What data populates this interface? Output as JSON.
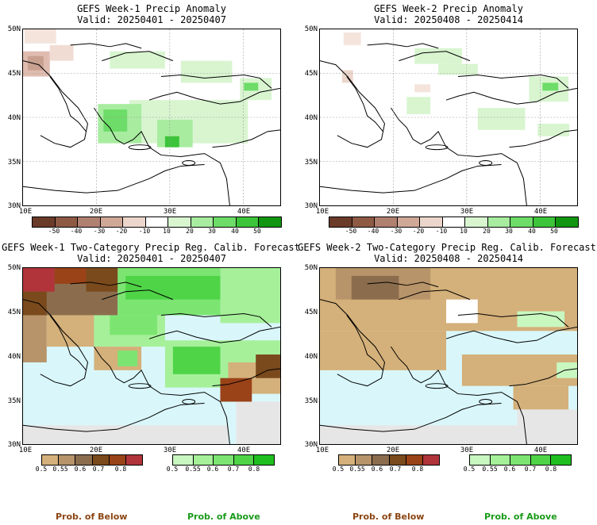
{
  "panels": [
    {
      "title": "GEFS Week-1 Precip Anomaly",
      "subtitle": "Valid: 20250401 - 20250407"
    },
    {
      "title": "GEFS Week-2 Precip Anomaly",
      "subtitle": "Valid: 20250408 - 20250414"
    },
    {
      "title": "GEFS Week-1 Two-Category Precip Reg. Calib. Forecast",
      "subtitle": "Valid: 20250401 - 20250407"
    },
    {
      "title": "GEFS Week-2 Two-Category Precip Reg. Calib. Forecast",
      "subtitle": "Valid: 20250408 - 20250414"
    }
  ],
  "lat_labels": [
    "50N",
    "45N",
    "40N",
    "35N",
    "30N"
  ],
  "lon_labels": [
    "10E",
    "20E",
    "30E",
    "40E"
  ],
  "anomaly_colorbar": {
    "labels": [
      "-50",
      "-40",
      "-30",
      "-20",
      "-10",
      "10",
      "20",
      "30",
      "40",
      "50"
    ],
    "colors": [
      "#6b3b2a",
      "#8e5a44",
      "#b08070",
      "#d0a898",
      "#ecd6cc",
      "#ffffff",
      "#d8f5d0",
      "#a8eca0",
      "#6ddc68",
      "#3cc43a",
      "#119611"
    ]
  },
  "prob_below_colorbar": {
    "labels": [
      "0.5",
      "0.55",
      "0.6",
      "0.7",
      "0.8"
    ],
    "colors": [
      "#d4b07a",
      "#b8946a",
      "#8b6d4e",
      "#7a4a1c",
      "#9a4218",
      "#b0343a"
    ]
  },
  "prob_above_colorbar": {
    "labels": [
      "0.5",
      "0.55",
      "0.6",
      "0.7",
      "0.8"
    ],
    "colors": [
      "#c8f7c0",
      "#a6f09a",
      "#7ce572",
      "#4fd447",
      "#1fbf1f"
    ]
  },
  "legend_text": {
    "below": "Prob. of Below",
    "above": "Prob. of Above"
  },
  "colors": {
    "below_text": "#8b4513",
    "above_text": "#1a9a1a",
    "sea": "#d9f7fb",
    "no_data": "#e6e6e6"
  },
  "chart_data": [
    {
      "type": "heatmap",
      "title": "GEFS Week-1 Precip Anomaly",
      "subtitle": "Valid: 20250401 - 20250407",
      "xlim": [
        10,
        45
      ],
      "ylim": [
        30,
        50
      ],
      "xticks": [
        "10E",
        "20E",
        "30E",
        "40E"
      ],
      "yticks": [
        "50N",
        "45N",
        "40N",
        "35N",
        "30N"
      ],
      "colorbar": [
        -50,
        -40,
        -30,
        -20,
        -10,
        10,
        20,
        30,
        40,
        50
      ],
      "grid": true
    },
    {
      "type": "heatmap",
      "title": "GEFS Week-2 Precip Anomaly",
      "subtitle": "Valid: 20250408 - 20250414",
      "xlim": [
        10,
        45
      ],
      "ylim": [
        30,
        50
      ],
      "xticks": [
        "10E",
        "20E",
        "30E",
        "40E"
      ],
      "yticks": [
        "50N",
        "45N",
        "40N",
        "35N",
        "30N"
      ],
      "colorbar": [
        -50,
        -40,
        -30,
        -20,
        -10,
        10,
        20,
        30,
        40,
        50
      ],
      "grid": true
    },
    {
      "type": "heatmap",
      "title": "GEFS Week-1 Two-Category Precip Reg. Calib. Forecast",
      "subtitle": "Valid: 20250401 - 20250407",
      "xlim": [
        10,
        45
      ],
      "ylim": [
        30,
        50
      ],
      "xticks": [
        "10E",
        "20E",
        "30E",
        "40E"
      ],
      "yticks": [
        "50N",
        "45N",
        "40N",
        "35N",
        "30N"
      ],
      "colorbar_below": [
        0.5,
        0.55,
        0.6,
        0.7,
        0.8
      ],
      "colorbar_above": [
        0.5,
        0.55,
        0.6,
        0.7,
        0.8
      ]
    },
    {
      "type": "heatmap",
      "title": "GEFS Week-2 Two-Category Precip Reg. Calib. Forecast",
      "subtitle": "Valid: 20250408 - 20250414",
      "xlim": [
        10,
        45
      ],
      "ylim": [
        30,
        50
      ],
      "xticks": [
        "10E",
        "20E",
        "30E",
        "40E"
      ],
      "yticks": [
        "50N",
        "45N",
        "40N",
        "35N",
        "30N"
      ],
      "colorbar_below": [
        0.5,
        0.55,
        0.6,
        0.7,
        0.8
      ],
      "colorbar_above": [
        0.5,
        0.55,
        0.6,
        0.7,
        0.8
      ]
    }
  ]
}
